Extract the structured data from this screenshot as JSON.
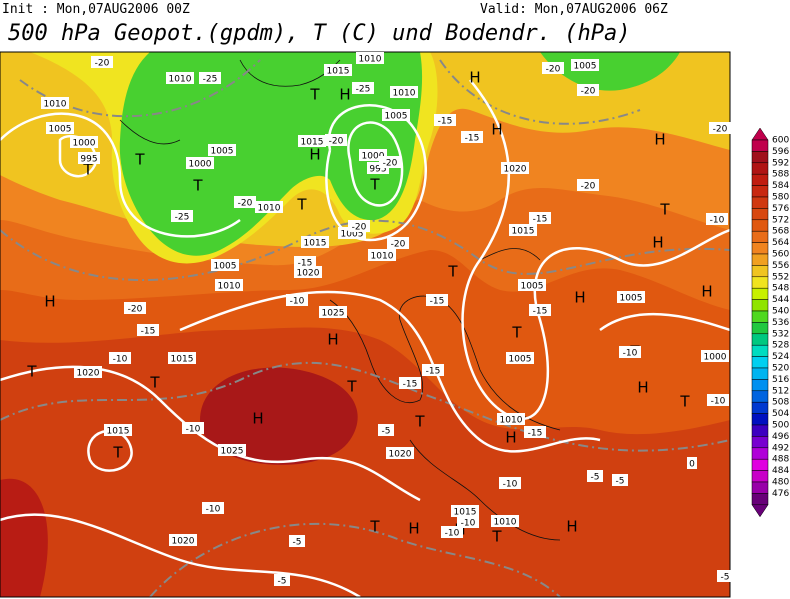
{
  "header": {
    "init": "Init : Mon,07AUG2006  00Z",
    "valid": "Valid: Mon,07AUG2006  06Z",
    "title": "500 hPa Geopot.(gpdm), T (C) und Bodendr. (hPa)"
  },
  "colorbar": {
    "levels": [
      600,
      596,
      592,
      588,
      584,
      580,
      576,
      572,
      568,
      564,
      560,
      556,
      552,
      548,
      544,
      540,
      536,
      532,
      528,
      524,
      520,
      516,
      512,
      508,
      504,
      500,
      496,
      492,
      488,
      484,
      480,
      476
    ],
    "colors": [
      "#c0004c",
      "#a0101c",
      "#b01414",
      "#c01c10",
      "#c82810",
      "#d03810",
      "#d84810",
      "#e05810",
      "#e86c18",
      "#f08420",
      "#f0a020",
      "#f0c420",
      "#f0e420",
      "#c8f000",
      "#90e400",
      "#50d820",
      "#20c840",
      "#00c880",
      "#00dcc0",
      "#00d0f0",
      "#00b4f0",
      "#0090f0",
      "#0064e0",
      "#0038d0",
      "#0010c0",
      "#3c00c0",
      "#7800d0",
      "#b000d8",
      "#e000e0",
      "#c800c8",
      "#9800a8",
      "#680078"
    ]
  },
  "map": {
    "pressure_centers": [
      "T",
      "T",
      "T",
      "T",
      "H",
      "H",
      "T",
      "T",
      "H",
      "H",
      "H",
      "T",
      "H",
      "H",
      "T",
      "T",
      "T",
      "H",
      "H",
      "T",
      "T",
      "T",
      "H",
      "H",
      "T",
      "H",
      "T",
      "H",
      "T",
      "T",
      "H",
      "H",
      "T",
      "H"
    ],
    "isobar_labels": [
      1010,
      1010,
      1005,
      1000,
      995,
      1015,
      1010,
      1005,
      1015,
      1000,
      995,
      1005,
      1000,
      1010,
      1005,
      1015,
      1010,
      1020,
      1005,
      1010,
      1025,
      1015,
      1020,
      1015,
      1025,
      1020,
      1020,
      1015,
      1005,
      1005,
      1005,
      1010,
      1000,
      1015,
      1010,
      1020,
      1005,
      1010
    ],
    "temperature_labels": [
      -20,
      -25,
      -25,
      -20,
      -20,
      -25,
      -20,
      -20,
      -20,
      -15,
      -15,
      -20,
      -20,
      -20,
      -15,
      -10,
      -20,
      -15,
      -10,
      -20,
      -15,
      -10,
      -15,
      -15,
      -10,
      -10,
      -15,
      -15,
      -10,
      -5,
      -15,
      -10,
      -5,
      -5,
      -10,
      -5,
      -5,
      -10,
      -10,
      0,
      -5
    ]
  }
}
